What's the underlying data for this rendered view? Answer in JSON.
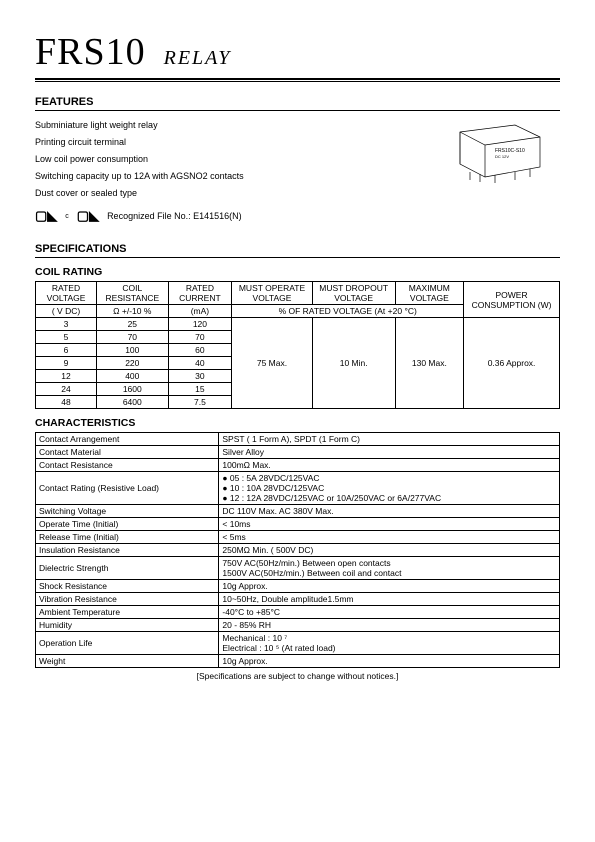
{
  "header": {
    "code": "FRS10",
    "type": "RELAY"
  },
  "features": {
    "title": "FEATURES",
    "items": [
      "Subminiature light weight relay",
      "Printing circuit terminal",
      "Low coil power consumption",
      "Switching capacity up to 12A with AGSNO2 contacts",
      "Dust cover or sealed type"
    ],
    "cert_text": "Recognized File No.: E141516(N)"
  },
  "specifications_title": "SPECIFICATIONS",
  "coil": {
    "title": "COIL RATING",
    "headers": {
      "rated_voltage": "RATED VOLTAGE",
      "rated_voltage_unit": "( V   DC)",
      "coil_resistance": "COIL RESISTANCE",
      "coil_resistance_unit": "Ω +/-10 %",
      "rated_current": "RATED CURRENT",
      "rated_current_unit": "(mA)",
      "must_operate": "MUST OPERATE VOLTAGE",
      "must_dropout": "MUST DROPOUT VOLTAGE",
      "max_voltage": "MAXIMUM VOLTAGE",
      "power": "POWER CONSUMPTION (W)",
      "percent_note": "% OF RATED VOLTAGE (At +20 °C)"
    },
    "rows": [
      {
        "v": "3",
        "r": "25",
        "c": "120"
      },
      {
        "v": "5",
        "r": "70",
        "c": "70"
      },
      {
        "v": "6",
        "r": "100",
        "c": "60"
      },
      {
        "v": "9",
        "r": "220",
        "c": "40"
      },
      {
        "v": "12",
        "r": "400",
        "c": "30"
      },
      {
        "v": "24",
        "r": "1600",
        "c": "15"
      },
      {
        "v": "48",
        "r": "6400",
        "c": "7.5"
      }
    ],
    "must_operate_val": "75 Max.",
    "must_dropout_val": "10 Min.",
    "max_voltage_val": "130 Max.",
    "power_val": "0.36 Approx."
  },
  "characteristics": {
    "title": "CHARACTERISTICS",
    "rows": [
      {
        "label": "Contact Arrangement",
        "value": "SPST ( 1 Form A),     SPDT (1 Form C)"
      },
      {
        "label": "Contact Material",
        "value": "Silver Alloy"
      },
      {
        "label": "Contact Resistance",
        "value": "100mΩ Max."
      },
      {
        "label": "Contact Rating (Resistive Load)",
        "value": "● 05 :   5A   28VDC/125VAC\n● 10  : 10A  28VDC/125VAC\n● 12  : 12A  28VDC/125VAC  or  10A/250VAC  or  6A/277VAC"
      },
      {
        "label": "Switching Voltage",
        "value": "DC 110V Max. AC 380V Max."
      },
      {
        "label": "Operate Time (Initial)",
        "value": "< 10ms"
      },
      {
        "label": "Release Time (Initial)",
        "value": "< 5ms"
      },
      {
        "label": "Insulation Resistance",
        "value": "250MΩ  Min. ( 500V DC)"
      },
      {
        "label": "Dielectric Strength",
        "value": "750V AC(50Hz/min.) Between open contacts\n1500V AC(50Hz/min.) Between coil and contact"
      },
      {
        "label": "Shock Resistance",
        "value": "10g Approx."
      },
      {
        "label": "Vibration Resistance",
        "value": "10~50Hz, Double amplitude1.5mm"
      },
      {
        "label": "Ambient Temperature",
        "value": "-40°C to +85°C"
      },
      {
        "label": "Humidity",
        "value": "20 - 85% RH"
      },
      {
        "label": "Operation Life",
        "value": "Mechanical    :  10 ⁷\nElectrical        :  10 ⁵ (At rated load)"
      },
      {
        "label": "Weight",
        "value": "10g Approx."
      }
    ],
    "footnote": "[Specifications are subject to change without notices.]"
  }
}
